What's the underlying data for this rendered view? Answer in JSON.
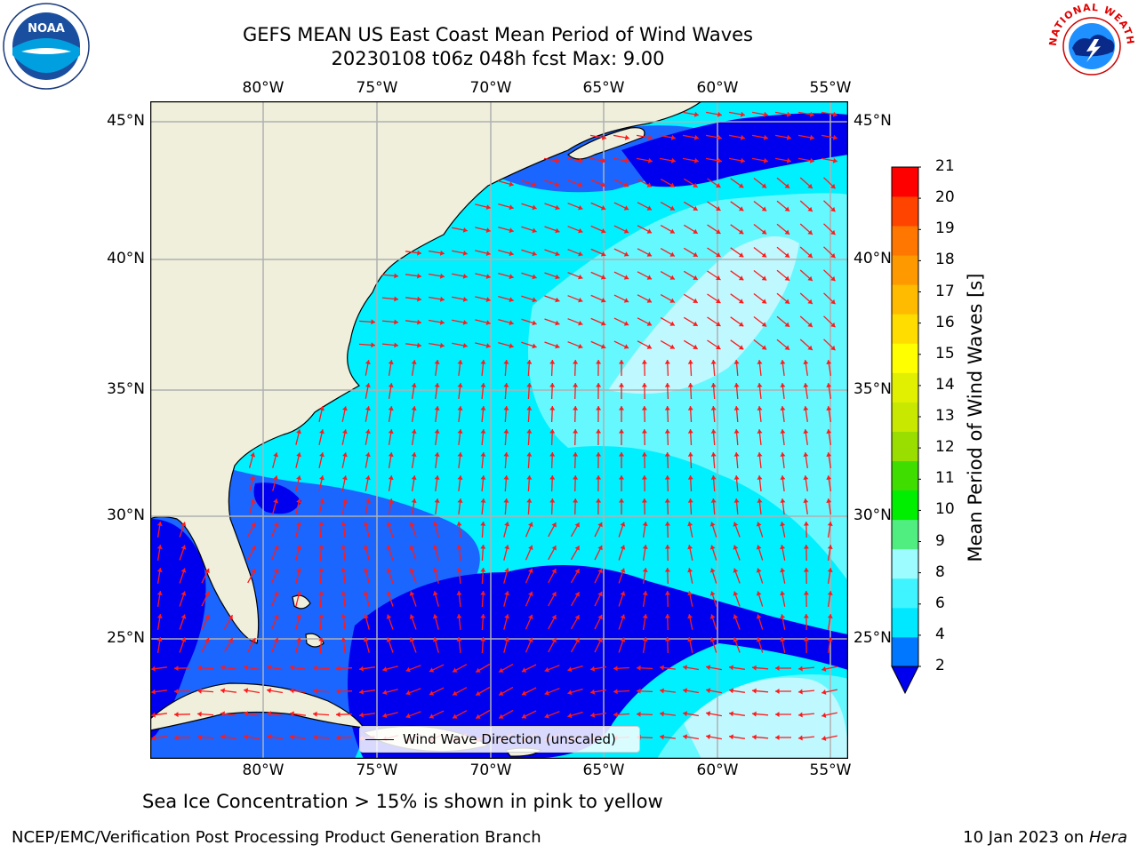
{
  "title": {
    "line1": "GEFS MEAN US East Coast Mean Period of Wind Waves",
    "line2": "20230108 t06z 048h fcst   Max: 9.00"
  },
  "axes": {
    "lon_labels": [
      "80°W",
      "75°W",
      "70°W",
      "65°W",
      "60°W",
      "55°W"
    ],
    "lat_labels": [
      "45°N",
      "40°N",
      "35°N",
      "30°N",
      "25°N"
    ]
  },
  "legend": {
    "label": "Wind Wave Direction (unscaled)"
  },
  "colorbar": {
    "label": "Mean Period of Wind Waves [s]",
    "ticks": [
      "2",
      "4",
      "6",
      "8",
      "9",
      "10",
      "11",
      "12",
      "13",
      "14",
      "15",
      "16",
      "17",
      "18",
      "19",
      "20",
      "21"
    ],
    "colors": [
      "#0077ff",
      "#00e8ff",
      "#40f4ff",
      "#9dfcff",
      "#50ee80",
      "#00ee00",
      "#40dd00",
      "#9ade00",
      "#c8e800",
      "#e0f000",
      "#ffff00",
      "#ffdd00",
      "#ffbb00",
      "#ff9900",
      "#ff7700",
      "#ff4400",
      "#ff0000"
    ],
    "under_color": "#0000ee"
  },
  "palette": {
    "land": "#efefdc",
    "p2": "#0000ee",
    "p3": "#1a66ff",
    "p4": "#00f0ff",
    "p5": "#66f8ff",
    "p6": "#bff8ff",
    "arrow": "#ff1a1a"
  },
  "logos": {
    "left": "NOAA",
    "right": "NATIONAL WEATHER SERVICE"
  },
  "note": "Sea Ice Concentration > 15% is shown in pink to yellow",
  "footer": {
    "left": "NCEP/EMC/Verification Post Processing Product Generation Branch",
    "right_date": "10 Jan 2023 on ",
    "right_machine": "Hera"
  }
}
